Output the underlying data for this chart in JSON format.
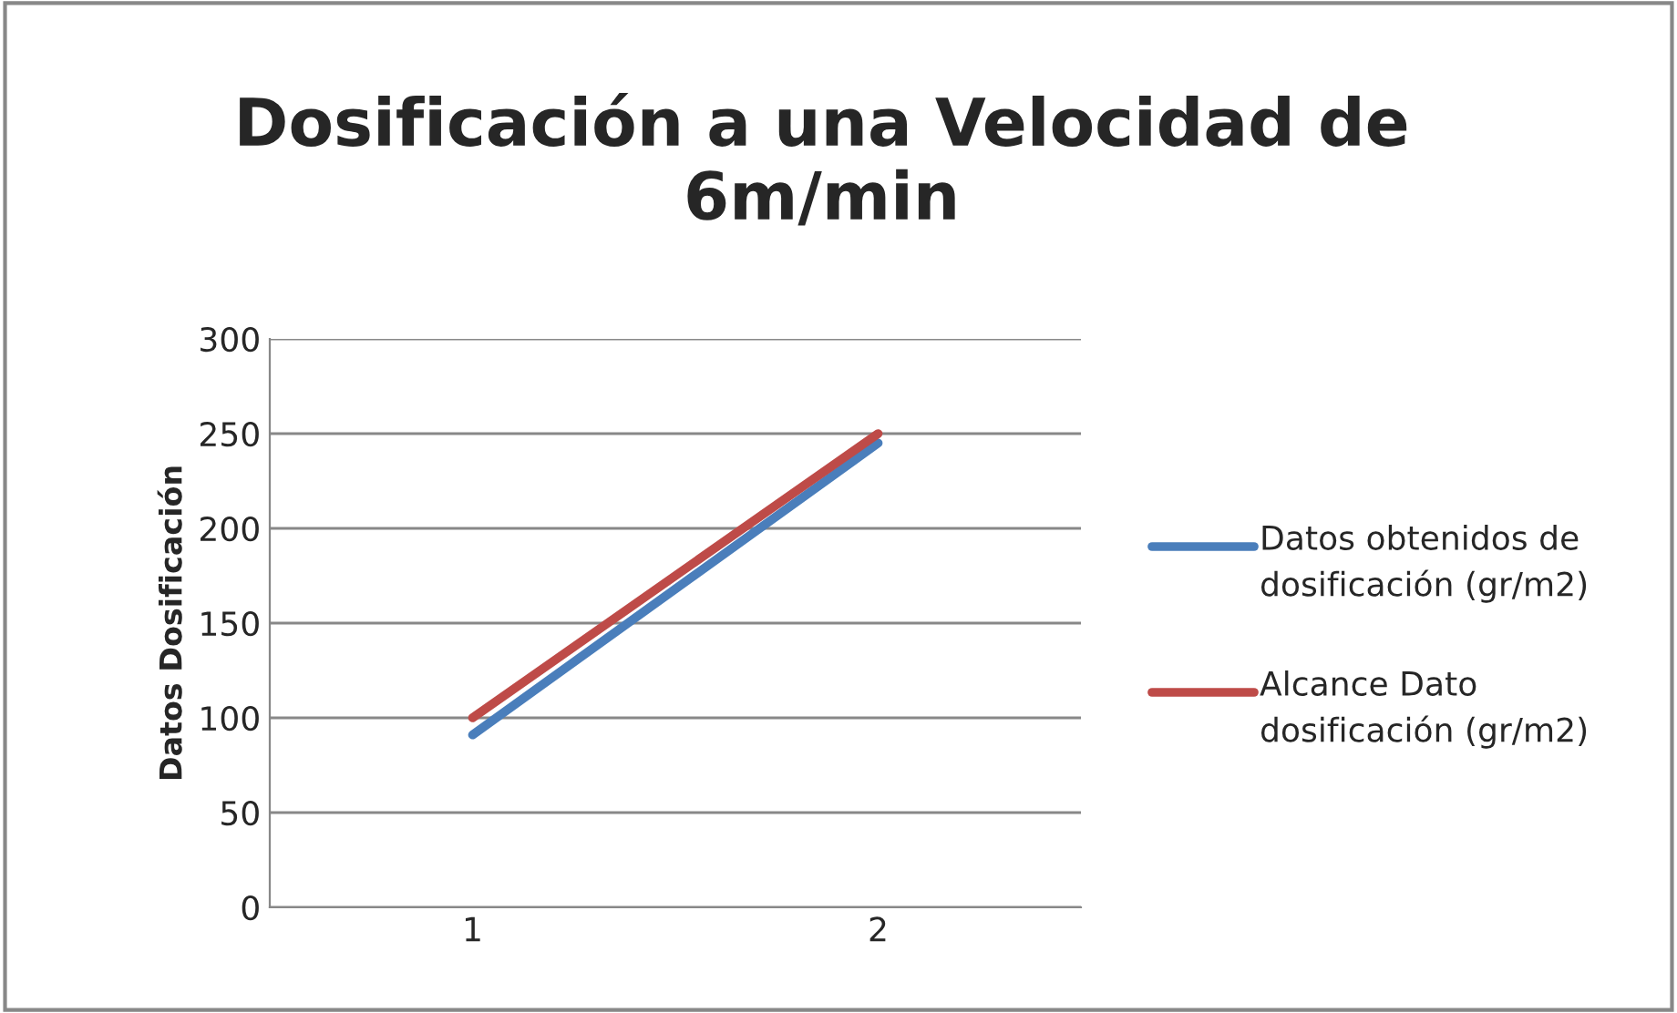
{
  "chart_data": {
    "type": "line",
    "title": "Dosificación a una Velocidad de 6m/min",
    "ylabel": "Datos Dosificación",
    "categories": [
      "1",
      "2"
    ],
    "series": [
      {
        "name": "Datos obtenidos de dosificación (gr/m2)",
        "color": "#4a7ebb",
        "values": [
          91,
          245
        ]
      },
      {
        "name": "Alcance Dato dosificación (gr/m2)",
        "color": "#be4b48",
        "values": [
          100,
          250
        ]
      }
    ],
    "ylim": [
      0,
      300
    ],
    "yticks": [
      0,
      50,
      100,
      150,
      200,
      250,
      300
    ],
    "grid": "y",
    "legend": "right",
    "marker": "none",
    "line_style": "solid"
  }
}
